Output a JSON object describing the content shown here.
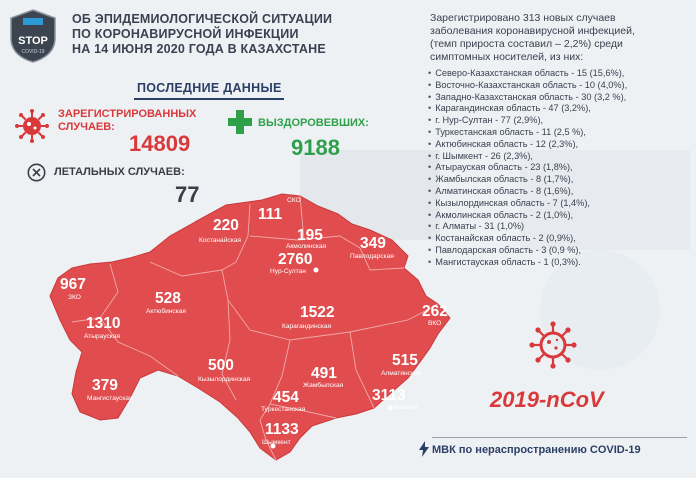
{
  "logo": {
    "text": "STOP",
    "subtext": "COVID-19"
  },
  "title": {
    "line1": "ОБ ЭПИДЕМИОЛОГИЧЕСКОЙ СИТУАЦИИ",
    "line2": "ПО КОРОНАВИРУСНОЙ ИНФЕКЦИИ",
    "line3": "НА 14 ИЮНЯ 2020 ГОДА В КАЗАХСТАНЕ"
  },
  "latest": "ПОСЛЕДНИЕ ДАННЫЕ",
  "registered": {
    "label1": "ЗАРЕГИСТРИРОВАННЫХ",
    "label2": "СЛУЧАЕВ:",
    "value": "14809"
  },
  "recovered": {
    "label": "ВЫЗДОРОВЕВШИХ:",
    "value": "9188"
  },
  "deaths": {
    "label": "ЛЕТАЛЬНЫХ СЛУЧАЕВ:",
    "value": "77"
  },
  "stats": {
    "head1": "Зарегистрировано 313 новых случаев",
    "head2": "заболевания коронавирусной инфекцией,",
    "head3": "(темп прироста составил – 2,2%) среди",
    "head4": "симптомных носителей, из них:",
    "items": [
      "Северо-Казахстанская область - 15 (15,6%),",
      "Восточно-Казахстанская область - 10 (4,0%),",
      "Западно-Казахстанская область - 30 (3,2 %),",
      "Карагандинская область - 47 (3,2%),",
      "г. Нур-Султан - 77 (2,9%),",
      "Туркестанская область - 11 (2,5 %),",
      "Актюбинская область - 12 (2,3%),",
      "г. Шымкент - 26 (2,3%),",
      "Атырауская область - 23 (1,8%),",
      "Жамбылская область - 8 (1,7%),",
      "Алматинская область - 8 (1,6%),",
      "Кызылординская область - 7 (1,4%),",
      "Акмолинская область - 2 (1,0%),",
      "г. Алматы - 31 (1,0%)",
      "Костанайская область - 2 (0,9%),",
      "Павлодарская область - 3 (0,9 %),",
      "Мангистауская область - 1 (0,3%)."
    ]
  },
  "regions": {
    "kostanay": {
      "num": "220",
      "name": "Костанайская"
    },
    "sko": {
      "num": "111",
      "name": "СКО"
    },
    "akmola": {
      "num": "195",
      "name": "Акмолинская"
    },
    "pavlodar": {
      "num": "349",
      "name": "Павлодарская"
    },
    "nursultan": {
      "num": "2760",
      "name": "Нур-Султан"
    },
    "zko": {
      "num": "967",
      "name": "ЗКО"
    },
    "aktobe": {
      "num": "528",
      "name": "Актюбинская"
    },
    "karaganda": {
      "num": "1522",
      "name": "Карагандинская"
    },
    "vko": {
      "num": "262",
      "name": "ВКО"
    },
    "atyrau": {
      "num": "1310",
      "name": "Атырауская"
    },
    "kyzylorda": {
      "num": "500",
      "name": "Кызылординская"
    },
    "zhambyl": {
      "num": "491",
      "name": "Жамбылская"
    },
    "almatyobl": {
      "num": "515",
      "name": "Алматинская"
    },
    "mangistau": {
      "num": "379",
      "name": "Мангистауская"
    },
    "turkestan": {
      "num": "454",
      "name": "Туркестанская"
    },
    "almaty": {
      "num": "3113",
      "name": "Алматы"
    },
    "shymkent": {
      "num": "1133",
      "name": "Шымкент"
    }
  },
  "ncov": "2019-nCoV",
  "footer": "МВК по нераспространению COVID-19",
  "colors": {
    "map": "#e14d4e",
    "red": "#d9393b",
    "green": "#2fa04a",
    "navy": "#2b3f66"
  }
}
